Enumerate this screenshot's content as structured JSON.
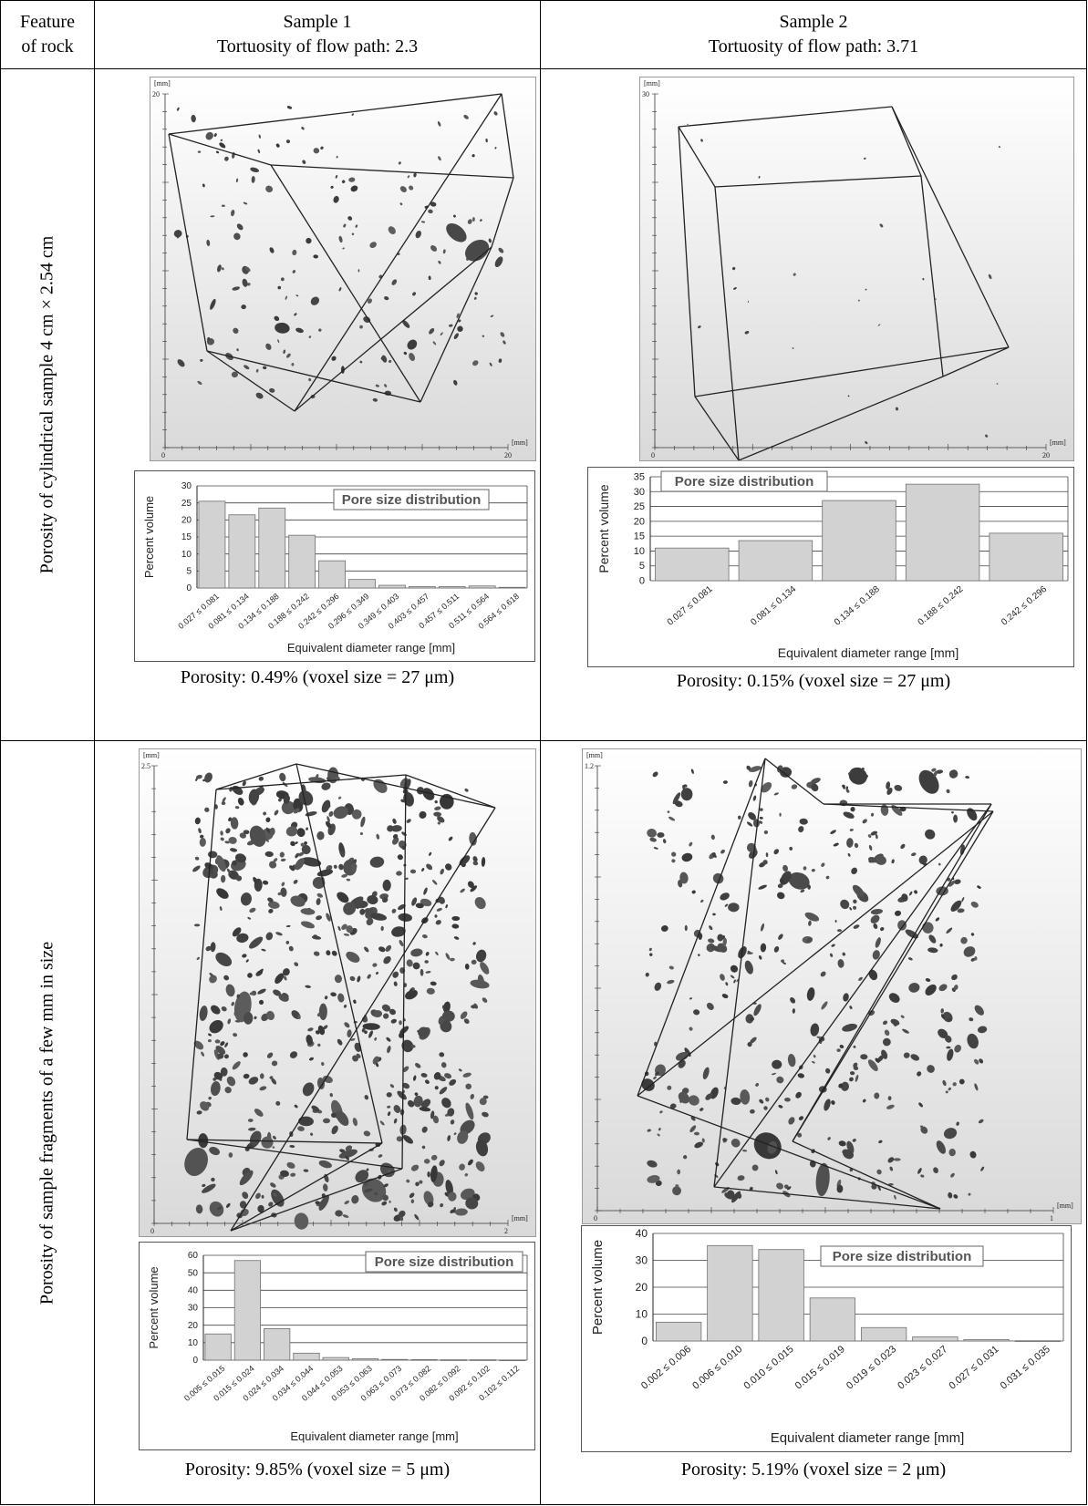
{
  "header": {
    "feature_line1": "Feature",
    "feature_line2": "of rock",
    "s1_line1": "Sample 1",
    "s1_line2": "Tortuosity of flow path: 2.3",
    "s2_line1": "Sample 2",
    "s2_line2": "Tortuosity of flow path: 3.71"
  },
  "rows": {
    "r1_label": "Porosity of cylindrical sample 4 cm × 2.54 cm",
    "r2_label": "Porosity of sample fragments of a few mm in size"
  },
  "volumes": {
    "v1": {
      "unit": "[mm]",
      "ymax": "20",
      "x0": "0",
      "xmax": "20"
    },
    "v2": {
      "unit": "[mm]",
      "ymax": "30",
      "x0": "0",
      "xmax": "20"
    },
    "v3": {
      "unit": "[mm]",
      "ymax": "2.5",
      "x0": "0",
      "xmax": "2"
    },
    "v4": {
      "unit": "[mm]",
      "ymax": "1.2",
      "x0": "0",
      "xmax": "1"
    }
  },
  "captions": {
    "c1": "Porosity: 0.49% (voxel size = 27 μm)",
    "c2": "Porosity: 0.15% (voxel size = 27 μm)",
    "c3": "Porosity: 9.85% (voxel size = 5 μm)",
    "c4": "Porosity: 5.19% (voxel size = 2 μm)"
  },
  "chart_data": [
    {
      "type": "bar",
      "title": "Pore size distribution",
      "ylabel": "Percent volume",
      "xlabel": "Equivalent diameter range [mm]",
      "ylim": [
        0,
        30
      ],
      "yticks": [
        0,
        5,
        10,
        15,
        20,
        25,
        30
      ],
      "categories": [
        "0.027 ≤ 0.081",
        "0.081 ≤ 0.134",
        "0.134 ≤ 0.188",
        "0.188 ≤ 0.242",
        "0.242 ≤ 0.296",
        "0.296 ≤ 0.349",
        "0.349 ≤ 0.403",
        "0.403 ≤ 0.457",
        "0.457 ≤ 0.511",
        "0.511 ≤ 0.564",
        "0.564 ≤ 0.618"
      ],
      "values": [
        25.5,
        21.5,
        23.5,
        15.5,
        8,
        2.5,
        0.8,
        0.4,
        0.4,
        0.6,
        0.2
      ]
    },
    {
      "type": "bar",
      "title": "Pore size distribution",
      "ylabel": "Percent volume",
      "xlabel": "Equivalent diameter range [mm]",
      "ylim": [
        0,
        35
      ],
      "yticks": [
        0,
        5,
        10,
        15,
        20,
        25,
        30,
        35
      ],
      "categories": [
        "0.027 ≤ 0.081",
        "0.081 ≤ 0.134",
        "0.134 ≤ 0.188",
        "0.188 ≤ 0.242",
        "0.242 ≤ 0.296"
      ],
      "values": [
        11,
        13.5,
        27,
        32.5,
        16
      ]
    },
    {
      "type": "bar",
      "title": "Pore size distribution",
      "ylabel": "Percent volume",
      "xlabel": "Equivalent diameter range [mm]",
      "ylim": [
        0,
        60
      ],
      "yticks": [
        0,
        10,
        20,
        30,
        40,
        50,
        60
      ],
      "categories": [
        "0.005 ≤ 0.015",
        "0.015 ≤ 0.024",
        "0.024 ≤ 0.034",
        "0.034 ≤ 0.044",
        "0.044 ≤ 0.053",
        "0.053 ≤ 0.063",
        "0.063 ≤ 0.073",
        "0.073 ≤ 0.082",
        "0.082 ≤ 0.092",
        "0.092 ≤ 0.102",
        "0.102 ≤ 0.112"
      ],
      "values": [
        15,
        57,
        18,
        4,
        1.5,
        0.8,
        0.4,
        0.3,
        0.2,
        0.2,
        0.1
      ]
    },
    {
      "type": "bar",
      "title": "Pore size distribution",
      "ylabel": "Percent volume",
      "xlabel": "Equivalent diameter range [mm]",
      "ylim": [
        0,
        40
      ],
      "yticks": [
        0,
        10,
        20,
        30,
        40
      ],
      "categories": [
        "0.002 ≤ 0.006",
        "0.006 ≤ 0.010",
        "0.010 ≤ 0.015",
        "0.015 ≤ 0.019",
        "0.019 ≤ 0.023",
        "0.023 ≤ 0.027",
        "0.027 ≤ 0.031",
        "0.031 ≤ 0.035"
      ],
      "values": [
        7,
        35.5,
        34,
        16,
        5,
        1.5,
        0.5,
        0.1
      ]
    }
  ]
}
